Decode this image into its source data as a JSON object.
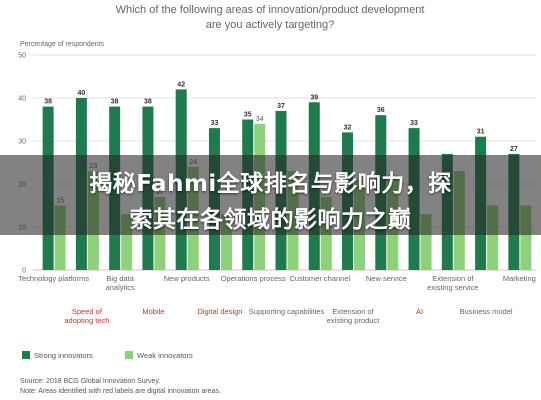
{
  "chart_data": {
    "type": "bar",
    "title": "Which of the following areas of innovation/product development are you actively targeting?",
    "ylabel": "Percentage of respondents",
    "ylim": [
      0,
      50
    ],
    "yticks": [
      0,
      10,
      20,
      30,
      40,
      50
    ],
    "categories": [
      "Technology platforms",
      "Speed of adopting tech",
      "Big data analytics",
      "Mobile",
      "New products",
      "Digital design",
      "Operations process",
      "Supporting capabilities",
      "Customer channel",
      "Extension of existing product",
      "New service",
      "AI",
      "Extension of existing service",
      "Business model",
      "Marketing"
    ],
    "highlighted": [
      false,
      true,
      false,
      true,
      false,
      true,
      false,
      false,
      false,
      false,
      false,
      true,
      false,
      false,
      false
    ],
    "series": [
      {
        "name": "Strong innovators",
        "values": [
          38,
          40,
          38,
          38,
          42,
          33,
          35,
          37,
          39,
          32,
          36,
          33,
          27,
          31,
          27
        ]
      },
      {
        "name": "Weak innovators",
        "values": [
          15,
          23,
          13,
          17,
          24,
          13,
          34,
          23,
          17,
          21,
          22,
          13,
          23,
          15,
          15
        ]
      }
    ],
    "bar_labels": {
      "Strong innovators": [
        "38",
        "40",
        "38",
        "38",
        "42",
        "33",
        "35",
        "37",
        "39",
        "32",
        "36",
        "33",
        "",
        "31",
        "27"
      ],
      "Weak innovators": [
        "15",
        "23",
        "",
        "17",
        "24",
        "",
        "34",
        "",
        "",
        "",
        "",
        "",
        "",
        "",
        ""
      ]
    },
    "legend": "bottom-left",
    "grid": true,
    "colors": {
      "strong": "#1f7a4d",
      "weak": "#8fd17a",
      "highlight": "#c0392b",
      "axis_text": "#666666"
    }
  },
  "overlay": {
    "line1": "揭秘Fahmi全球排名与影响力，探",
    "line2": "索其在各领域的影响力之巅"
  },
  "footer": {
    "source": "Source: 2018 BCG Global Innovation Survey.",
    "note": "Note: Areas identified with red labels are digital innovation areas."
  }
}
